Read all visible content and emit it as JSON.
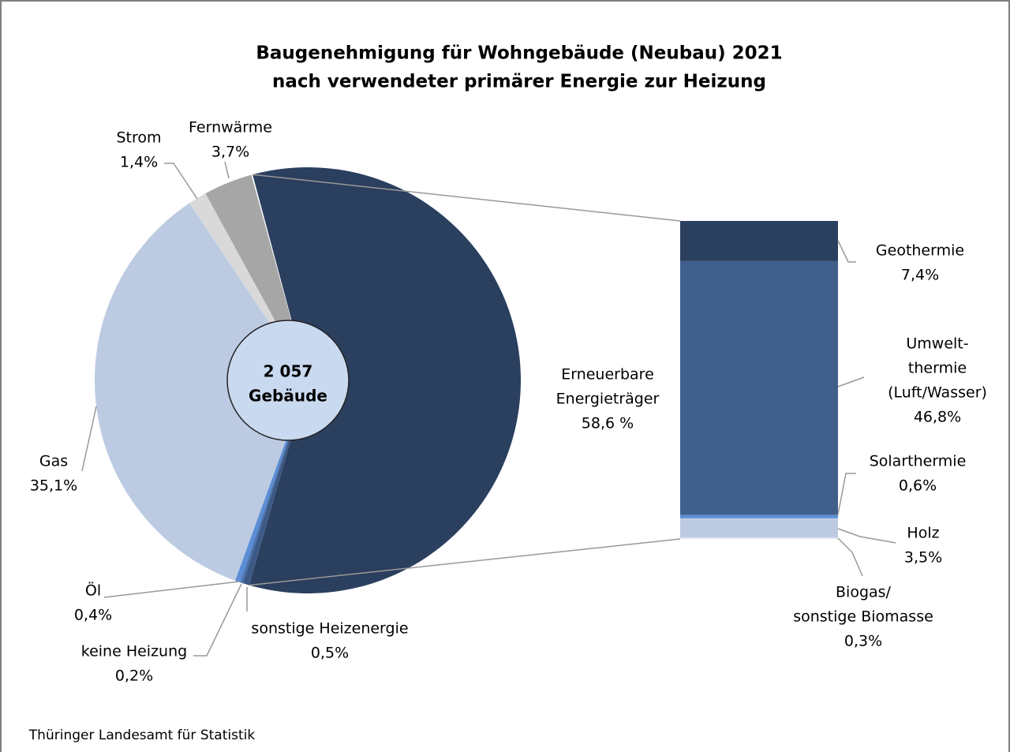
{
  "chart_data": {
    "type": "pie-of-bar",
    "title": "Baugenehmigung für Wohngebäude (Neubau) 2021",
    "subtitle": "nach verwendeter primärer Energie zur Heizung",
    "center": [
      "2 057",
      "Gebäude"
    ],
    "pie": {
      "categories": [
        [
          "Erneuerbare",
          "Energieträger"
        ],
        [
          "sonstige Heizenergie"
        ],
        [
          "keine Heizung"
        ],
        [
          "Öl"
        ],
        [
          "Gas"
        ],
        [
          "Strom"
        ],
        [
          "Fernwärme"
        ]
      ],
      "values": [
        58.6,
        0.5,
        0.2,
        0.4,
        35.1,
        1.4,
        3.7
      ],
      "value_labels": [
        "58,6 %",
        "0,5%",
        "0,2%",
        "0,4%",
        "35,1%",
        "1,4%",
        "3,7%"
      ],
      "colors": [
        "#2b3f5f",
        "#3d5a86",
        "#4a72ad",
        "#5b8ed6",
        "#bccbe2",
        "#d9d9d9",
        "#a6a6a6"
      ]
    },
    "bar": {
      "categories": [
        [
          "Geothermie"
        ],
        [
          "Umwelt-",
          "thermie",
          "(Luft/Wasser)"
        ],
        [
          "Solarthermie"
        ],
        [
          "Holz"
        ],
        [
          "Biogas/",
          "sonstige Biomasse"
        ]
      ],
      "values": [
        7.4,
        46.8,
        0.6,
        3.5,
        0.3
      ],
      "value_labels": [
        "7,4%",
        "46,8%",
        "0,6%",
        "3,5%",
        "0,3%"
      ],
      "colors": [
        "#2b3f5f",
        "#3f5f8c",
        "#5b8ed6",
        "#bccbe2",
        "#dfe6f0"
      ]
    },
    "source": "Thüringer Landesamt für Statistik"
  }
}
